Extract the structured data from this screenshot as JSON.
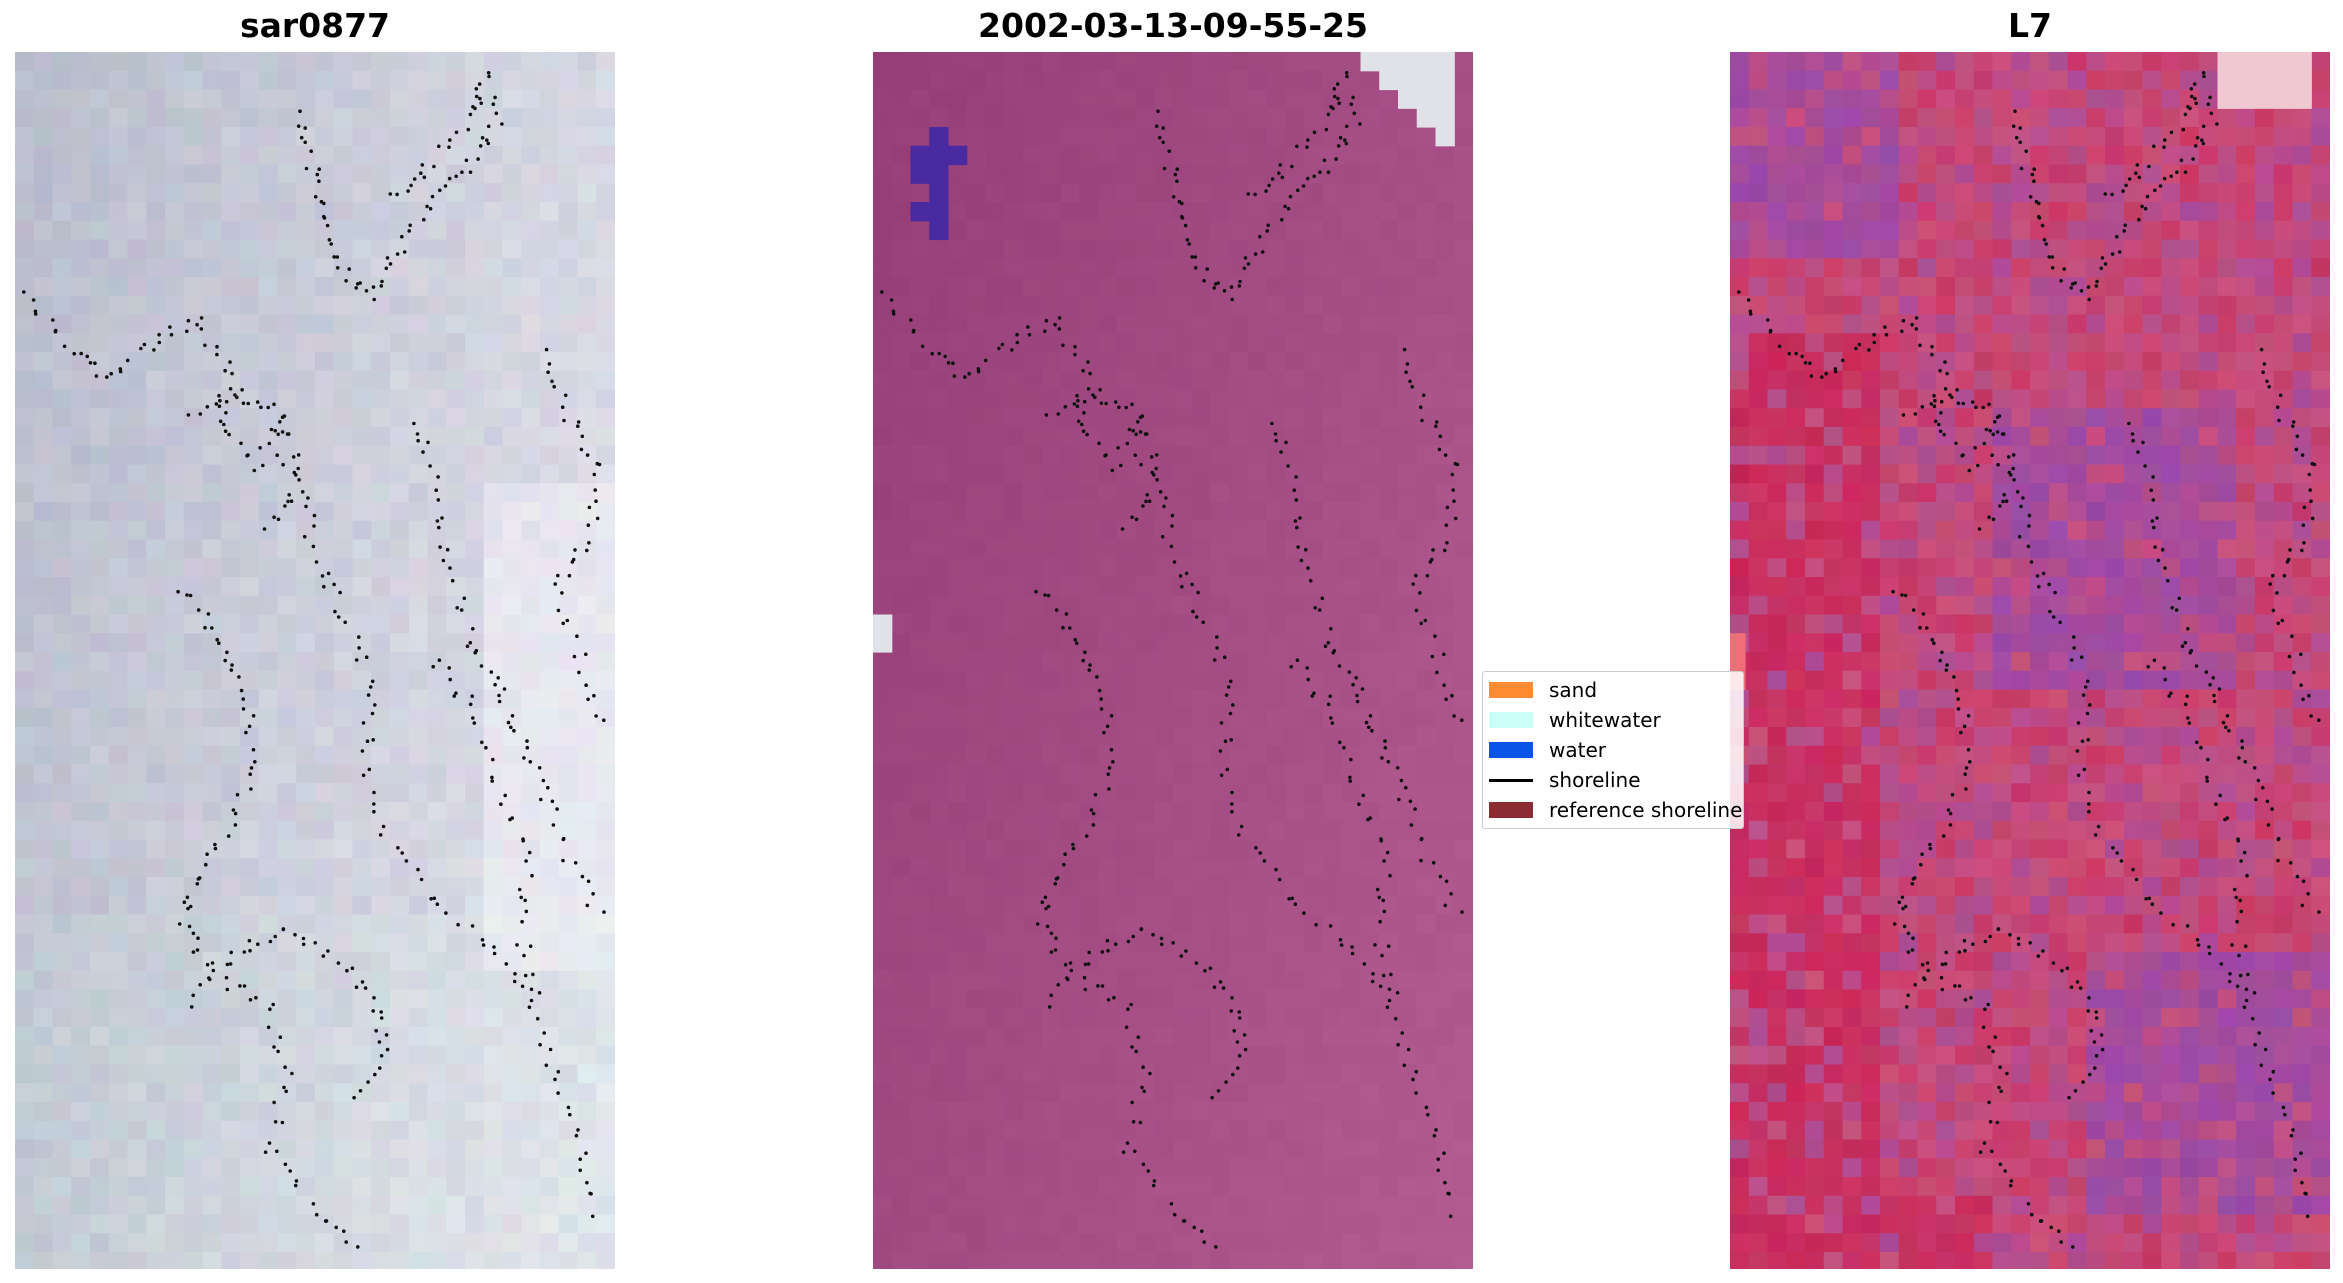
{
  "panels": [
    {
      "title": "sar0877",
      "palette": "rgb"
    },
    {
      "title": "2002-03-13-09-55-25",
      "palette": "classified"
    },
    {
      "title": "L7",
      "palette": "falsecolor"
    }
  ],
  "legend": {
    "items": [
      {
        "label": "sand",
        "color": "#ff8c32",
        "kind": "patch"
      },
      {
        "label": "whitewater",
        "color": "#c8fff8",
        "kind": "patch"
      },
      {
        "label": "water",
        "color": "#0a55e6",
        "kind": "patch"
      },
      {
        "label": "shoreline",
        "color": "#000000",
        "kind": "line"
      },
      {
        "label": "reference shoreline",
        "color": "#8b2c33",
        "kind": "patch"
      }
    ]
  },
  "colors": {
    "rgb_base": "#b8bccc",
    "rgb_light": "#e8e8f0",
    "classified_base": "#a04b82",
    "classified_water": "#4a2aa0",
    "classified_cloud": "#e0e2e8",
    "falsecolor_red": "#c8285a",
    "falsecolor_purple": "#9a4aa8",
    "falsecolor_pink": "#c8507a",
    "dots": "#111111"
  }
}
